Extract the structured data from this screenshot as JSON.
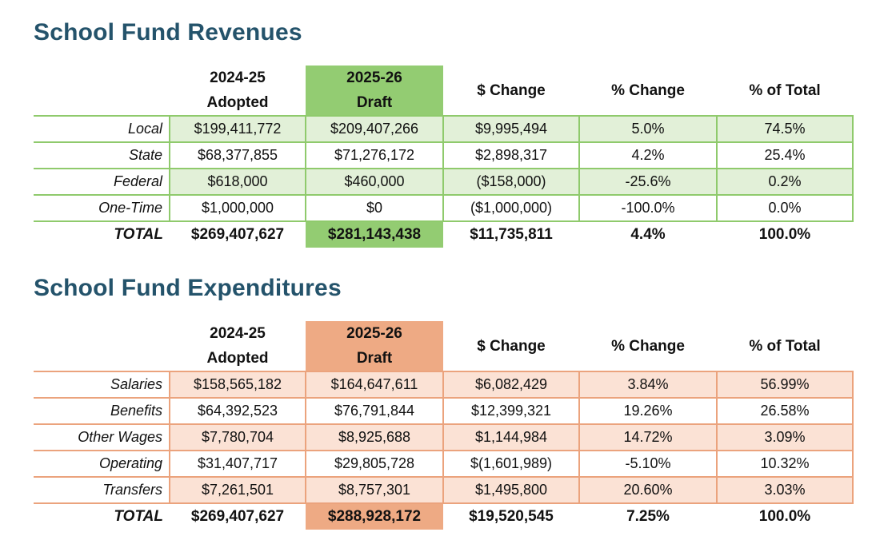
{
  "revenues": {
    "title": "School Fund Revenues",
    "headers": [
      "2024-25\nAdopted",
      "2025-26\nDraft",
      "$ Change",
      "% Change",
      "% of Total"
    ],
    "rows": [
      {
        "label": "Local",
        "values": [
          "$199,411,772",
          "$209,407,266",
          "$9,995,494",
          "5.0%",
          "74.5%"
        ]
      },
      {
        "label": "State",
        "values": [
          "$68,377,855",
          "$71,276,172",
          "$2,898,317",
          "4.2%",
          "25.4%"
        ]
      },
      {
        "label": "Federal",
        "values": [
          "$618,000",
          "$460,000",
          "($158,000)",
          "-25.6%",
          "0.2%"
        ]
      },
      {
        "label": "One-Time",
        "values": [
          "$1,000,000",
          "$0",
          "($1,000,000)",
          "-100.0%",
          "0.0%"
        ]
      }
    ],
    "total": {
      "label": "TOTAL",
      "values": [
        "$269,407,627",
        "$281,143,438",
        "$11,735,811",
        "4.4%",
        "100.0%"
      ]
    },
    "accent": "#93cc72",
    "shade": "#e2f0d8"
  },
  "expenditures": {
    "title": "School Fund Expenditures",
    "headers": [
      "2024-25\nAdopted",
      "2025-26\nDraft",
      "$ Change",
      "% Change",
      "% of Total"
    ],
    "rows": [
      {
        "label": "Salaries",
        "values": [
          "$158,565,182",
          "$164,647,611",
          "$6,082,429",
          "3.84%",
          "56.99%"
        ]
      },
      {
        "label": "Benefits",
        "values": [
          "$64,392,523",
          "$76,791,844",
          "$12,399,321",
          "19.26%",
          "26.58%"
        ]
      },
      {
        "label": "Other Wages",
        "values": [
          "$7,780,704",
          "$8,925,688",
          "$1,144,984",
          "14.72%",
          "3.09%"
        ]
      },
      {
        "label": "Operating",
        "values": [
          "$31,407,717",
          "$29,805,728",
          "$(1,601,989)",
          "-5.10%",
          "10.32%"
        ]
      },
      {
        "label": "Transfers",
        "values": [
          "$7,261,501",
          "$8,757,301",
          "$1,495,800",
          "20.60%",
          "3.03%"
        ]
      }
    ],
    "total": {
      "label": "TOTAL",
      "values": [
        "$269,407,627",
        "$288,928,172",
        "$19,520,545",
        "7.25%",
        "100.0%"
      ]
    },
    "accent": "#eeaa84",
    "shade": "#fbe2d5"
  },
  "title_color": "#24536b"
}
